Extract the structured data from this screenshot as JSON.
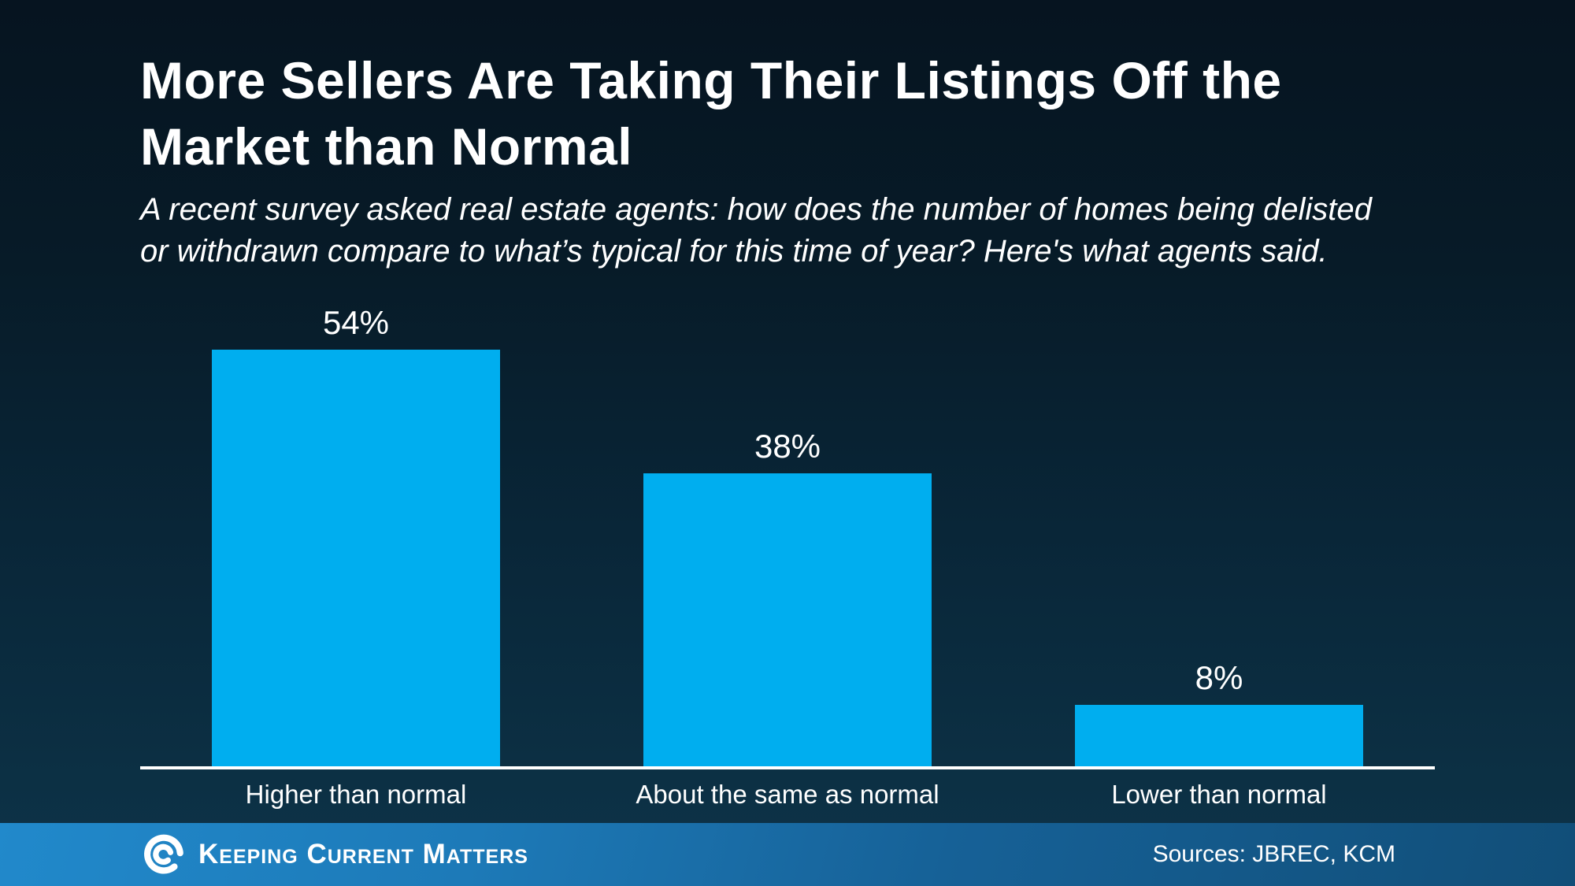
{
  "header": {
    "title_lines": [
      "More Sellers Are Taking Their Listings Off the",
      "Market than Normal"
    ],
    "subtitle_lines": [
      "A recent survey asked real estate agents: how does the number of homes being delisted",
      "or withdrawn compare to what’s typical for this time of year? Here's what agents said."
    ]
  },
  "chart_data": {
    "type": "bar",
    "categories": [
      "Higher than normal",
      "About the same as normal",
      "Lower than normal"
    ],
    "values": [
      54,
      38,
      8
    ],
    "value_labels": [
      "54%",
      "38%",
      "8%"
    ],
    "title": "More Sellers Are Taking Their Listings Off the Market than Normal",
    "xlabel": "",
    "ylabel": "",
    "ylim": [
      0,
      60
    ],
    "grid": false,
    "legend": false,
    "bar_color": "#00AEEF",
    "axis_color": "#FFFFFF",
    "label_color": "#FFFFFF"
  },
  "footer": {
    "brand": "Keeping Current Matters",
    "logo_icon": "kcm-swirl-icon",
    "sources": "Sources: JBREC, KCM",
    "bg_gradient_left": "#2189CB",
    "bg_gradient_right": "#114E78"
  },
  "colors": {
    "background_top": "#061420",
    "background_bottom": "#0E3349",
    "text": "#FFFFFF"
  }
}
